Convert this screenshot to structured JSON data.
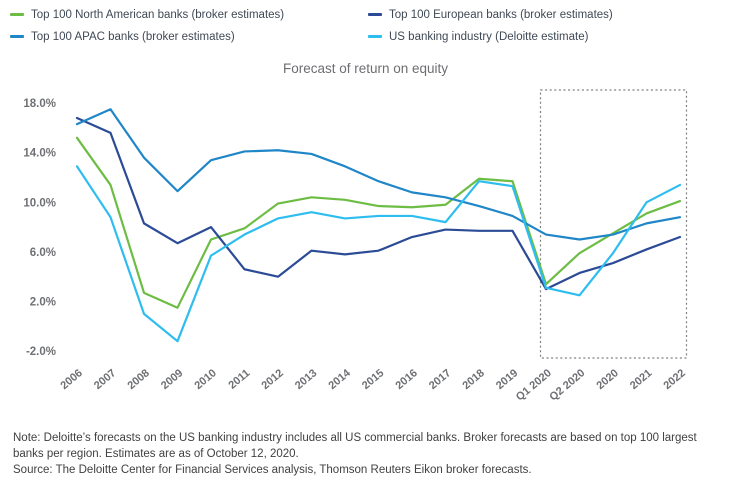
{
  "title": "Forecast of return on equity",
  "chart_data": {
    "type": "line",
    "categories": [
      "2006",
      "2007",
      "2008",
      "2009",
      "2010",
      "2011",
      "2012",
      "2013",
      "2014",
      "2015",
      "2016",
      "2017",
      "2018",
      "2019",
      "Q1 2020",
      "Q2 2020",
      "2020",
      "2021",
      "2022"
    ],
    "series": [
      {
        "id": "north-american",
        "name": "Top 100 North American banks (broker estimates)",
        "color": "#6DBD45",
        "values": [
          15.2,
          11.4,
          2.7,
          1.5,
          7.0,
          7.9,
          9.9,
          10.4,
          10.2,
          9.7,
          9.6,
          9.8,
          11.9,
          11.7,
          3.4,
          5.9,
          7.5,
          9.1,
          10.1
        ]
      },
      {
        "id": "european",
        "name": "Top 100 European banks (broker estimates)",
        "color": "#2C4B97",
        "values": [
          16.8,
          15.6,
          8.3,
          6.7,
          8.0,
          4.6,
          4.0,
          6.1,
          5.8,
          6.1,
          7.2,
          7.8,
          7.7,
          7.7,
          3.0,
          4.3,
          5.1,
          6.2,
          7.2
        ]
      },
      {
        "id": "apac",
        "name": "Top 100 APAC banks (broker estimates)",
        "color": "#1F86C8",
        "values": [
          16.3,
          17.5,
          13.6,
          10.9,
          13.4,
          14.1,
          14.2,
          13.9,
          12.9,
          11.7,
          10.8,
          10.4,
          9.7,
          8.9,
          7.4,
          7.0,
          7.4,
          8.3,
          8.8
        ]
      },
      {
        "id": "us-industry",
        "name": "US banking industry (Deloitte estimate)",
        "color": "#2EBDEF",
        "values": [
          12.9,
          8.8,
          1.0,
          -1.2,
          5.7,
          7.4,
          8.7,
          9.2,
          8.7,
          8.9,
          8.9,
          8.4,
          11.7,
          11.3,
          3.1,
          2.5,
          5.9,
          10.0,
          11.4
        ]
      }
    ],
    "y_ticks": {
      "labels": [
        "18.0%",
        "14.0%",
        "10.0%",
        "6.0%",
        "2.0%",
        "-2.0%"
      ],
      "values": [
        18,
        14,
        10,
        6,
        2,
        -2
      ]
    },
    "ylim": [
      -2,
      18
    ],
    "grid": false,
    "legend_position": "top",
    "annotations": [
      {
        "type": "dotted-box",
        "from_category": "Q1 2020",
        "to_category": "2022",
        "meaning": "forecast period highlight"
      }
    ]
  },
  "note": {
    "note": "Note: Deloitte’s forecasts on the US banking industry includes all US commercial banks. Broker forecasts are based on top 100 largest banks per region. Estimates are as of October 12, 2020.",
    "source": "Source: The Deloitte Center for Financial Services analysis, Thomson Reuters Eikon broker forecasts."
  },
  "colors": {
    "axis_text": "#6E7074",
    "title_text": "#6D6E71",
    "legend_text": "#3F4955",
    "note_text": "#414042",
    "forecast_box_border": "#7F7F7F"
  }
}
